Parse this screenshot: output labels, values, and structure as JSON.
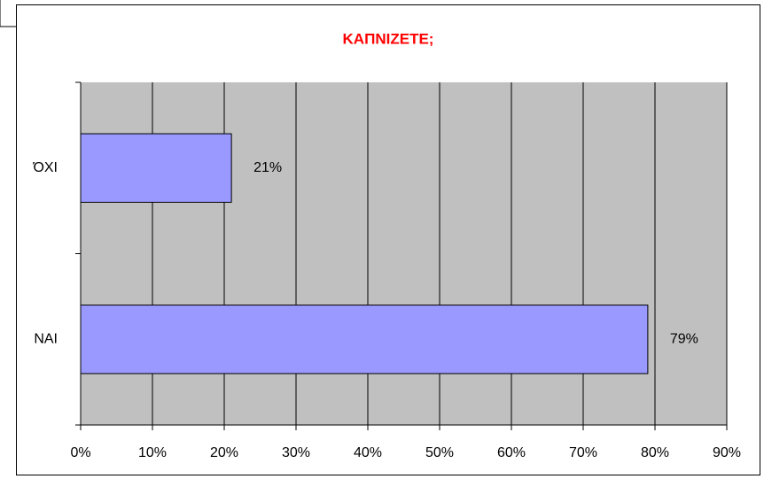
{
  "chart_data": {
    "type": "bar",
    "orientation": "horizontal",
    "title": "ΚΑΠΝΙΖΕΤΕ;",
    "categories": [
      "ΌΧΙ",
      "ΝΑΙ"
    ],
    "values": [
      21,
      79
    ],
    "value_labels": [
      "21%",
      "79%"
    ],
    "color": "#9999ff",
    "plot_background": "#c0c0c0",
    "title_color": "#ff0000",
    "xlim": [
      0,
      90
    ],
    "xticks": [
      {
        "value": 0,
        "label": "0%"
      },
      {
        "value": 10,
        "label": "10%"
      },
      {
        "value": 20,
        "label": "20%"
      },
      {
        "value": 30,
        "label": "30%"
      },
      {
        "value": 40,
        "label": "40%"
      },
      {
        "value": 50,
        "label": "50%"
      },
      {
        "value": 60,
        "label": "60%"
      },
      {
        "value": 70,
        "label": "70%"
      },
      {
        "value": 80,
        "label": "80%"
      },
      {
        "value": 90,
        "label": "90%"
      }
    ],
    "grid": true
  }
}
